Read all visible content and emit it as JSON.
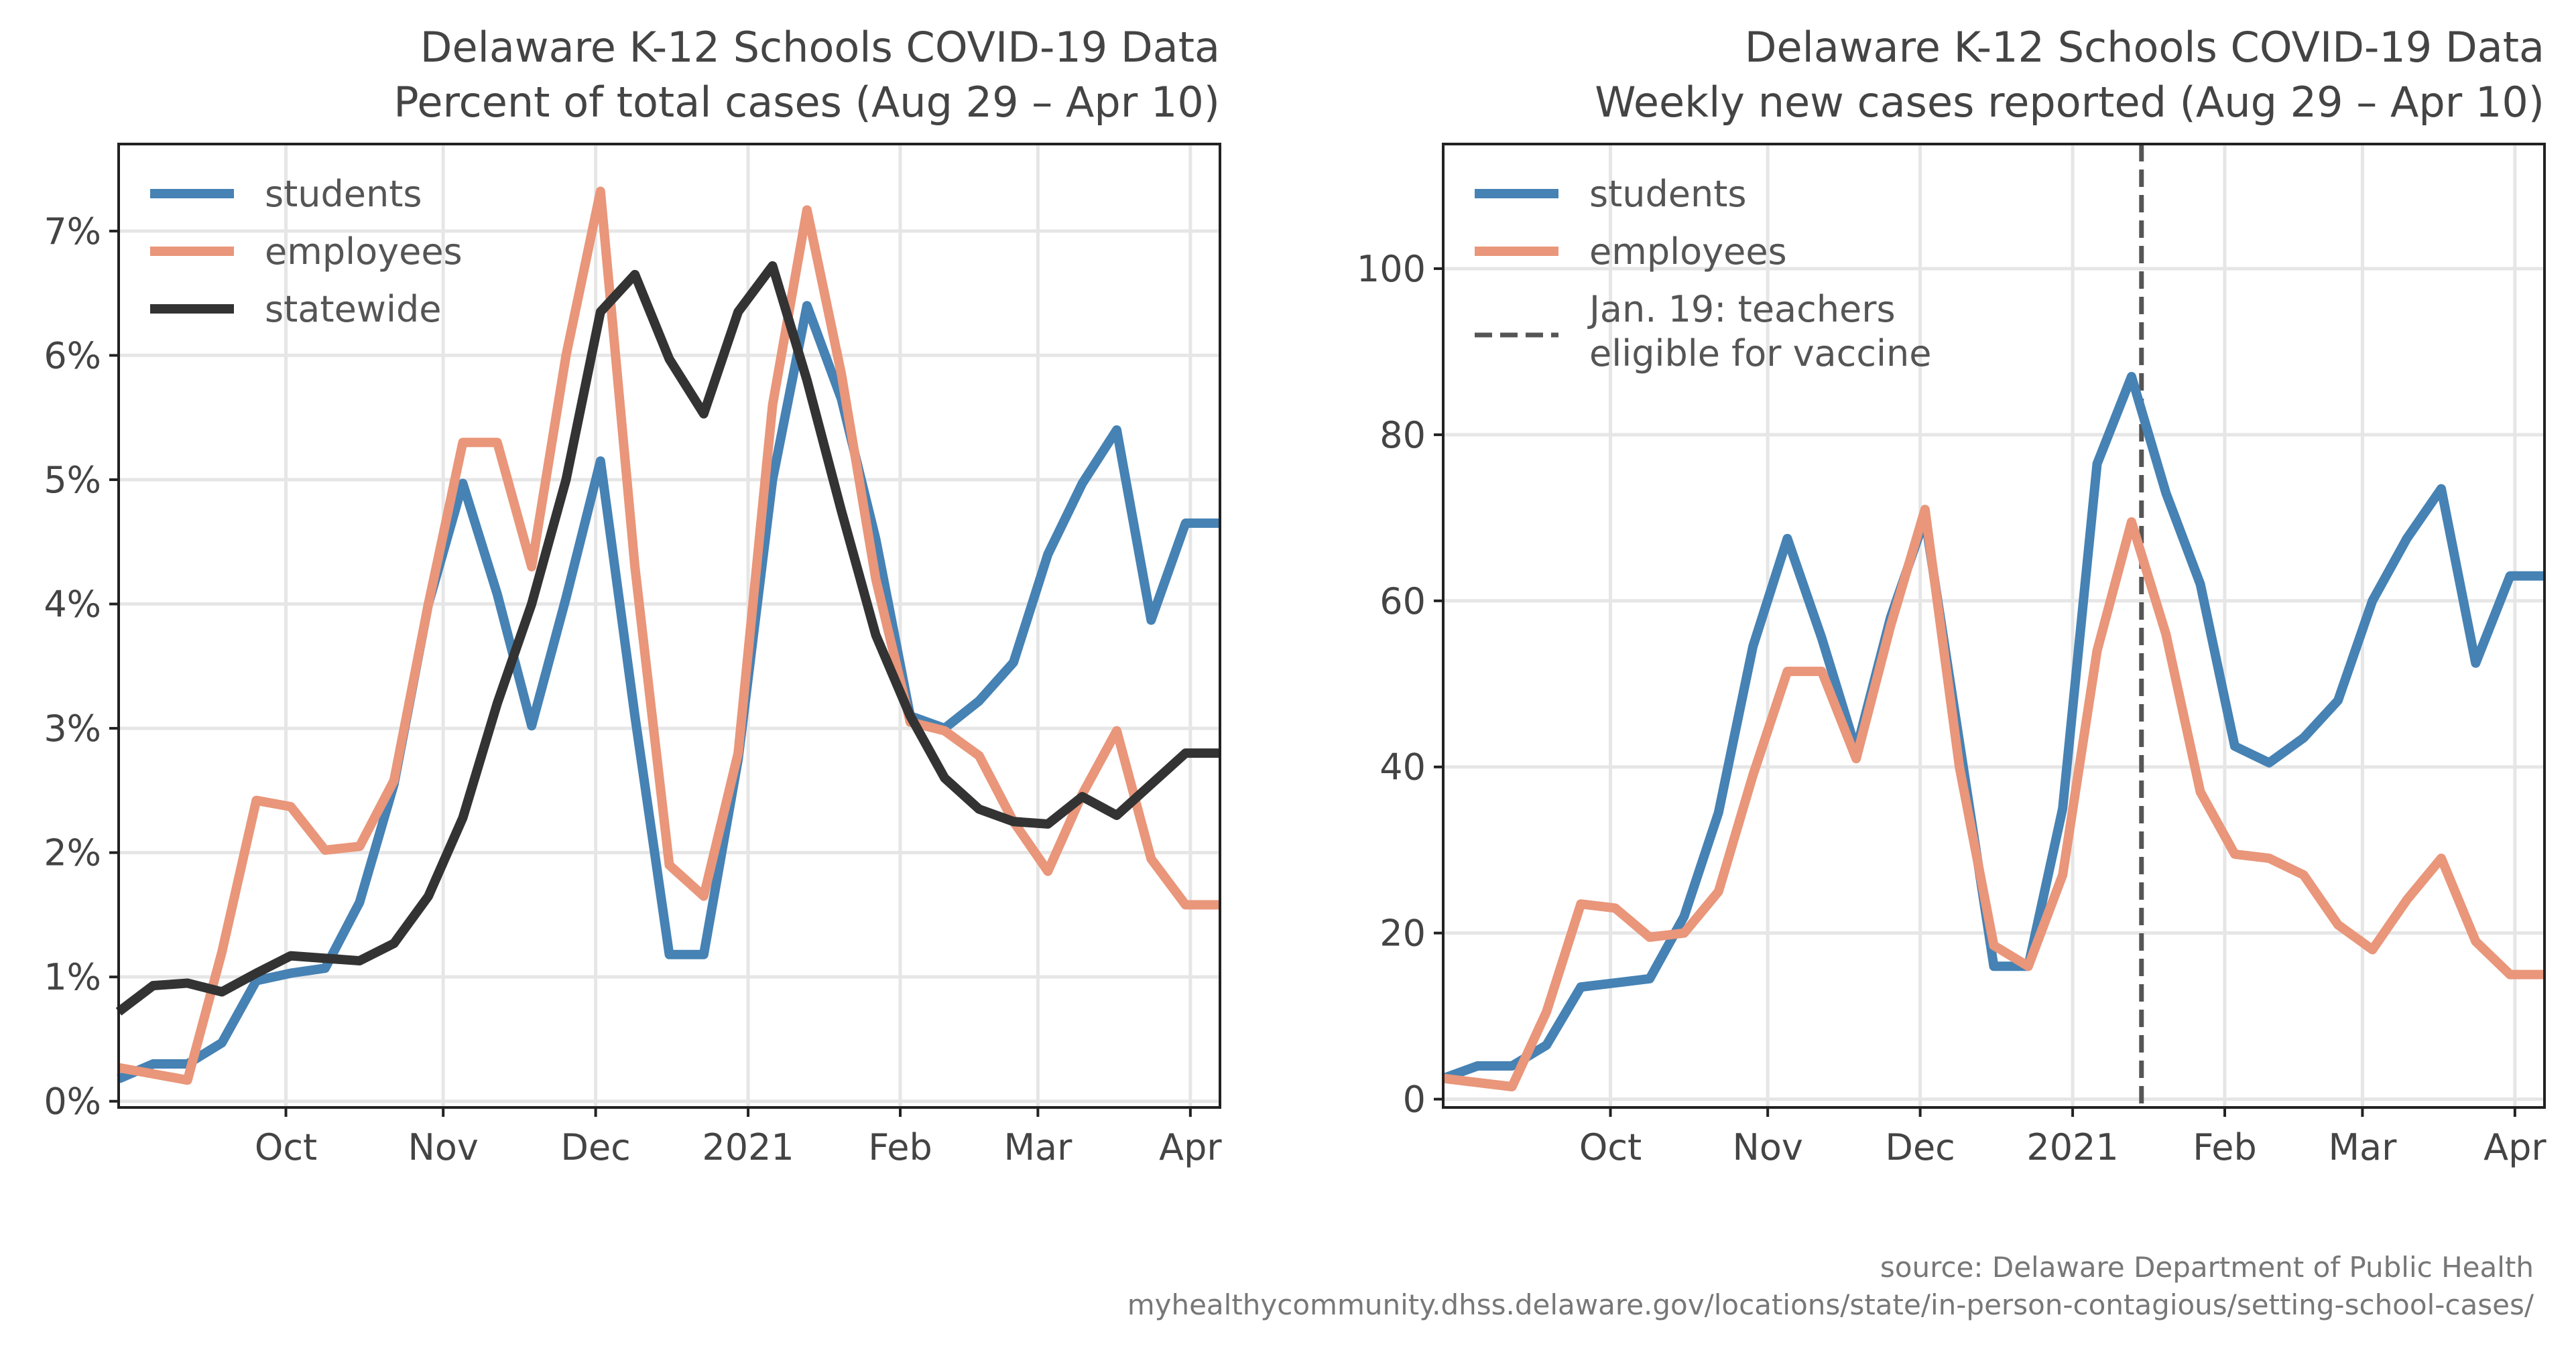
{
  "source": {
    "line1": "source: Delaware Department of Public Health",
    "line2": "myhealthycommunity.dhss.delaware.gov/locations/state/in-person-contagious/setting-school-cases/"
  },
  "chart_data": [
    {
      "type": "line",
      "title": [
        "Delaware K-12 Schools COVID-19 Data",
        "Percent of total cases (Aug 29 – Apr 10)"
      ],
      "x_tick_labels": [
        "Oct",
        "Nov",
        "Dec",
        "2021",
        "Feb",
        "Mar",
        "Apr"
      ],
      "x_tick_positions": [
        4.86,
        9.43,
        13.86,
        18.29,
        22.71,
        26.71,
        31.14
      ],
      "x": [
        "Aug 29",
        "Sep 5",
        "Sep 12",
        "Sep 19",
        "Sep 26",
        "Oct 3",
        "Oct 10",
        "Oct 17",
        "Oct 24",
        "Oct 31",
        "Nov 7",
        "Nov 14",
        "Nov 21",
        "Nov 28",
        "Dec 5",
        "Dec 12",
        "Dec 19",
        "Dec 26",
        "Jan 2",
        "Jan 9",
        "Jan 16",
        "Jan 23",
        "Jan 30",
        "Feb 6",
        "Feb 13",
        "Feb 20",
        "Feb 27",
        "Mar 6",
        "Mar 13",
        "Mar 20",
        "Mar 27",
        "Apr 3",
        "Apr 10"
      ],
      "xlim": [
        0,
        32
      ],
      "ylim": [
        -0.05,
        7.7
      ],
      "y_ticks": [
        0,
        1,
        2,
        3,
        4,
        5,
        6,
        7
      ],
      "y_tick_labels": [
        "0%",
        "1%",
        "2%",
        "3%",
        "4%",
        "5%",
        "6%",
        "7%"
      ],
      "grid": true,
      "legend_position": "top-left",
      "series": [
        {
          "name": "students",
          "color": "#4682b4",
          "values": [
            0.18,
            0.3,
            0.3,
            0.47,
            0.97,
            1.03,
            1.07,
            1.6,
            2.55,
            4.0,
            4.97,
            4.08,
            3.02,
            4.05,
            5.15,
            3.1,
            1.18,
            1.18,
            2.75,
            5.0,
            6.4,
            5.65,
            4.52,
            3.1,
            3.0,
            3.22,
            3.53,
            4.4,
            4.97,
            5.4,
            3.87,
            4.65,
            4.65
          ]
        },
        {
          "name": "employees",
          "color": "#e9967a",
          "values": [
            0.27,
            0.22,
            0.17,
            1.2,
            2.42,
            2.37,
            2.02,
            2.05,
            2.58,
            4.0,
            5.3,
            5.3,
            4.3,
            6.0,
            7.32,
            4.3,
            1.9,
            1.65,
            2.8,
            5.6,
            7.17,
            5.85,
            4.2,
            3.05,
            2.98,
            2.78,
            2.25,
            1.85,
            2.47,
            2.98,
            1.95,
            1.58,
            1.58
          ]
        },
        {
          "name": "statewide",
          "color": "#333333",
          "values": [
            0.72,
            0.93,
            0.95,
            0.88,
            1.03,
            1.17,
            1.15,
            1.13,
            1.27,
            1.65,
            2.28,
            3.2,
            4.0,
            5.0,
            6.35,
            6.65,
            5.97,
            5.53,
            6.35,
            6.72,
            5.8,
            4.75,
            3.75,
            3.1,
            2.6,
            2.35,
            2.25,
            2.23,
            2.45,
            2.3,
            2.55,
            2.8,
            2.8
          ]
        }
      ]
    },
    {
      "type": "line",
      "title": [
        "Delaware K-12 Schools COVID-19 Data",
        "Weekly new cases reported (Aug 29 – Apr 10)"
      ],
      "x_tick_labels": [
        "Oct",
        "Nov",
        "Dec",
        "2021",
        "Feb",
        "Mar",
        "Apr"
      ],
      "x_tick_positions": [
        4.86,
        9.43,
        13.86,
        18.29,
        22.71,
        26.71,
        31.14
      ],
      "x": [
        "Aug 29",
        "Sep 5",
        "Sep 12",
        "Sep 19",
        "Sep 26",
        "Oct 3",
        "Oct 10",
        "Oct 17",
        "Oct 24",
        "Oct 31",
        "Nov 7",
        "Nov 14",
        "Nov 21",
        "Nov 28",
        "Dec 5",
        "Dec 12",
        "Dec 19",
        "Dec 26",
        "Jan 2",
        "Jan 9",
        "Jan 16",
        "Jan 23",
        "Jan 30",
        "Feb 6",
        "Feb 13",
        "Feb 20",
        "Feb 27",
        "Mar 6",
        "Mar 13",
        "Mar 20",
        "Mar 27",
        "Apr 3",
        "Apr 10"
      ],
      "xlim": [
        0,
        32
      ],
      "ylim": [
        -1,
        115
      ],
      "y_ticks": [
        0,
        20,
        40,
        60,
        80,
        100
      ],
      "y_tick_labels": [
        "0",
        "20",
        "40",
        "60",
        "80",
        "100"
      ],
      "grid": true,
      "legend_position": "top-left",
      "vline": {
        "x": 20.29,
        "label": [
          "Jan. 19: teachers",
          "eligible for vaccine"
        ],
        "color": "#555555"
      },
      "series": [
        {
          "name": "students",
          "color": "#4682b4",
          "values": [
            2.5,
            4,
            4,
            6.5,
            13.5,
            14,
            14.5,
            22,
            34.5,
            54.5,
            67.5,
            55.5,
            42,
            58,
            70,
            43,
            16,
            16,
            35,
            76.5,
            87,
            73,
            62,
            42.5,
            40.5,
            43.5,
            48,
            60,
            67.5,
            73.5,
            52.5,
            63,
            63
          ]
        },
        {
          "name": "employees",
          "color": "#e9967a",
          "values": [
            2.5,
            2,
            1.5,
            10.5,
            23.5,
            23,
            19.5,
            20,
            25,
            39,
            51.5,
            51.5,
            41,
            57,
            71,
            40,
            18.5,
            16,
            27,
            54,
            69.5,
            56,
            37,
            29.5,
            29,
            27,
            21,
            18,
            24,
            29,
            19,
            15,
            15
          ]
        }
      ]
    }
  ]
}
